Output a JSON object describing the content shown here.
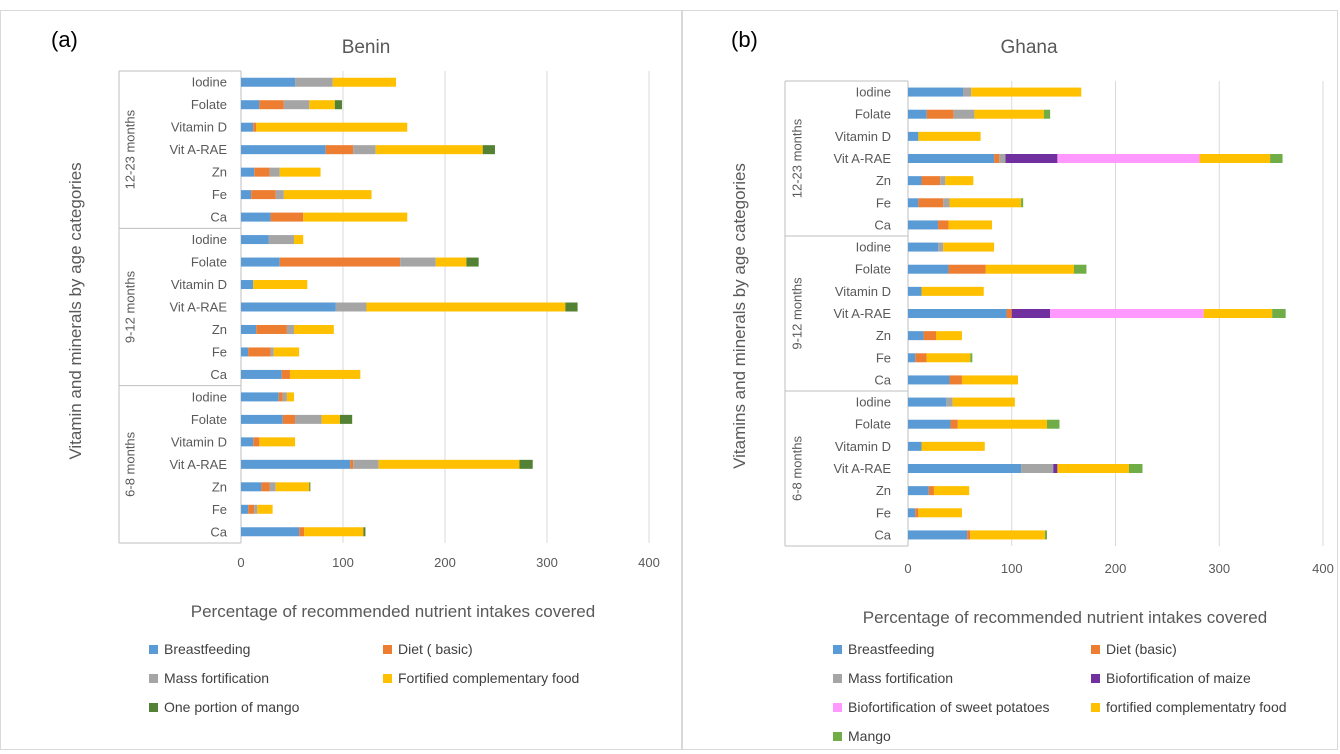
{
  "chart_data": [
    {
      "panel_label": "(a)",
      "type": "bar",
      "orientation": "horizontal",
      "stacked": true,
      "title": "Benin",
      "xlabel": "Percentage of recommended nutrient intakes covered",
      "ylabel": "Vitamin and minerals by age categories",
      "xlim": [
        0,
        400
      ],
      "xticks": [
        "0",
        "100",
        "200",
        "300",
        "400"
      ],
      "grid": "vertical",
      "legend_position": "bottom",
      "groups": [
        {
          "name": "12-23 months",
          "categories": [
            "Iodine",
            "Folate",
            "Vitamin D",
            "Vit A-RAE",
            "Zn",
            "Fe",
            "Ca"
          ]
        },
        {
          "name": "9-12 months",
          "categories": [
            "Iodine",
            "Folate",
            "Vitamin D",
            "Vit A-RAE",
            "Zn",
            "Fe",
            "Ca"
          ]
        },
        {
          "name": "6-8 months",
          "categories": [
            "Iodine",
            "Folate",
            "Vitamin D",
            "Vit A-RAE",
            "Zn",
            "Fe",
            "Ca"
          ]
        }
      ],
      "series": [
        {
          "name": "Breastfeeding",
          "color": "#5b9bd5",
          "values": [
            [
              53,
              18,
              12,
              83,
              13,
              10,
              29
            ],
            [
              27,
              38,
              12,
              93,
              15,
              7,
              40
            ],
            [
              37,
              41,
              12,
              107,
              20,
              7,
              57
            ]
          ]
        },
        {
          "name": "Diet ( basic)",
          "color": "#ed7d31",
          "values": [
            [
              0,
              24,
              3,
              27,
              15,
              24,
              32
            ],
            [
              0,
              118,
              0,
              0,
              30,
              22,
              8
            ],
            [
              4,
              12,
              6,
              3,
              8,
              6,
              5
            ]
          ]
        },
        {
          "name": "Mass fortification",
          "color": "#a5a5a5",
          "values": [
            [
              37,
              25,
              0,
              22,
              10,
              8,
              0
            ],
            [
              25,
              35,
              0,
              30,
              7,
              3,
              0
            ],
            [
              4,
              26,
              0,
              25,
              6,
              3,
              0
            ]
          ]
        },
        {
          "name": "Fortified complementary food",
          "color": "#ffc000",
          "values": [
            [
              62,
              25,
              148,
              105,
              40,
              86,
              102
            ],
            [
              9,
              30,
              53,
              195,
              39,
              25,
              69
            ],
            [
              7,
              18,
              35,
              138,
              33,
              15,
              58
            ]
          ]
        },
        {
          "name": "One portion of mango",
          "color": "#548235",
          "values": [
            [
              0,
              7,
              0,
              12,
              0,
              0,
              0
            ],
            [
              0,
              12,
              0,
              12,
              0,
              0,
              0
            ],
            [
              0,
              12,
              0,
              13,
              1,
              0,
              2
            ]
          ]
        }
      ]
    },
    {
      "panel_label": "(b)",
      "type": "bar",
      "orientation": "horizontal",
      "stacked": true,
      "title": "Ghana",
      "xlabel": "Percentage of recommended nutrient intakes covered",
      "ylabel": "Vitamins and minerals by age categories",
      "xlim": [
        0,
        400
      ],
      "xticks": [
        "0",
        "100",
        "200",
        "300",
        "400"
      ],
      "grid": "vertical",
      "legend_position": "bottom",
      "groups": [
        {
          "name": "12-23 months",
          "categories": [
            "Iodine",
            "Folate",
            "Vitamin D",
            "Vit A-RAE",
            "Zn",
            "Fe",
            "Ca"
          ]
        },
        {
          "name": "9-12 months",
          "categories": [
            "Iodine",
            "Folate",
            "Vitamin D",
            "Vit A-RAE",
            "Zn",
            "Fe",
            "Ca"
          ]
        },
        {
          "name": "6-8 months",
          "categories": [
            "Iodine",
            "Folate",
            "Vitamin D",
            "Vit A-RAE",
            "Zn",
            "Fe",
            "Ca"
          ]
        }
      ],
      "series": [
        {
          "name": "Breastfeeding",
          "color": "#5b9bd5",
          "values": [
            [
              53,
              18,
              10,
              83,
              13,
              10,
              29
            ],
            [
              29,
              39,
              13,
              95,
              15,
              7,
              40
            ],
            [
              37,
              41,
              13,
              109,
              20,
              7,
              57
            ]
          ]
        },
        {
          "name": "Diet (basic)",
          "color": "#ed7d31",
          "values": [
            [
              0,
              26,
              0,
              5,
              18,
              24,
              10
            ],
            [
              0,
              36,
              0,
              5,
              12,
              11,
              12
            ],
            [
              0,
              7,
              0,
              0,
              5,
              3,
              3
            ]
          ]
        },
        {
          "name": "Mass fortification",
          "color": "#a5a5a5",
          "values": [
            [
              8,
              20,
              0,
              6,
              5,
              6,
              0
            ],
            [
              5,
              0,
              0,
              0,
              0,
              0,
              0
            ],
            [
              6,
              0,
              0,
              31,
              0,
              0,
              0
            ]
          ]
        },
        {
          "name": "Biofortification of maize",
          "color": "#7030a0",
          "values": [
            [
              0,
              0,
              0,
              50,
              0,
              0,
              0
            ],
            [
              0,
              0,
              0,
              37,
              0,
              0,
              0
            ],
            [
              0,
              0,
              0,
              4,
              0,
              0,
              0
            ]
          ]
        },
        {
          "name": "Biofortification of sweet potatoes",
          "color": "#ff99ff",
          "values": [
            [
              0,
              0,
              0,
              137,
              0,
              0,
              0
            ],
            [
              0,
              0,
              0,
              148,
              0,
              0,
              0
            ],
            [
              0,
              0,
              0,
              0,
              0,
              0,
              0
            ]
          ]
        },
        {
          "name": "fortified complementatry food",
          "color": "#ffc000",
          "values": [
            [
              106,
              67,
              60,
              68,
              27,
              69,
              42
            ],
            [
              49,
              85,
              60,
              66,
              25,
              42,
              54
            ],
            [
              60,
              86,
              61,
              69,
              34,
              42,
              72
            ]
          ]
        },
        {
          "name": "Mango",
          "color": "#70ad47",
          "values": [
            [
              0,
              6,
              0,
              12,
              0,
              2,
              0
            ],
            [
              0,
              12,
              0,
              13,
              0,
              2,
              0
            ],
            [
              0,
              12,
              0,
              13,
              0,
              0,
              2
            ]
          ]
        }
      ]
    }
  ]
}
